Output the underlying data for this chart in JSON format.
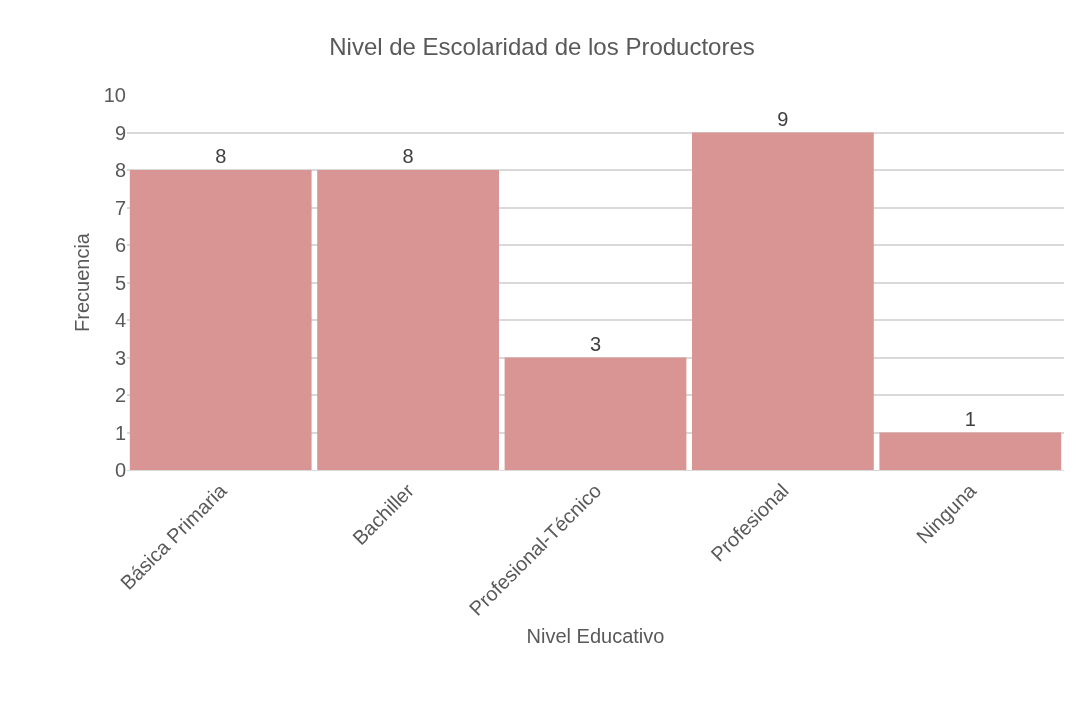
{
  "chart_data": {
    "type": "bar",
    "title": "Nivel de Escolaridad de los Productores",
    "xlabel": "Nivel Educativo",
    "ylabel": "Frecuencia",
    "categories": [
      "Básica Primaria",
      "Bachiller",
      "Profesional-Técnico",
      "Profesional",
      "Ninguna"
    ],
    "values": [
      8,
      8,
      3,
      9,
      1
    ],
    "color": "#d99594",
    "ylim": [
      0,
      10
    ],
    "yticks": [
      0,
      1,
      2,
      3,
      4,
      5,
      6,
      7,
      8,
      9,
      10
    ],
    "grid": "y",
    "data_labels": true
  }
}
